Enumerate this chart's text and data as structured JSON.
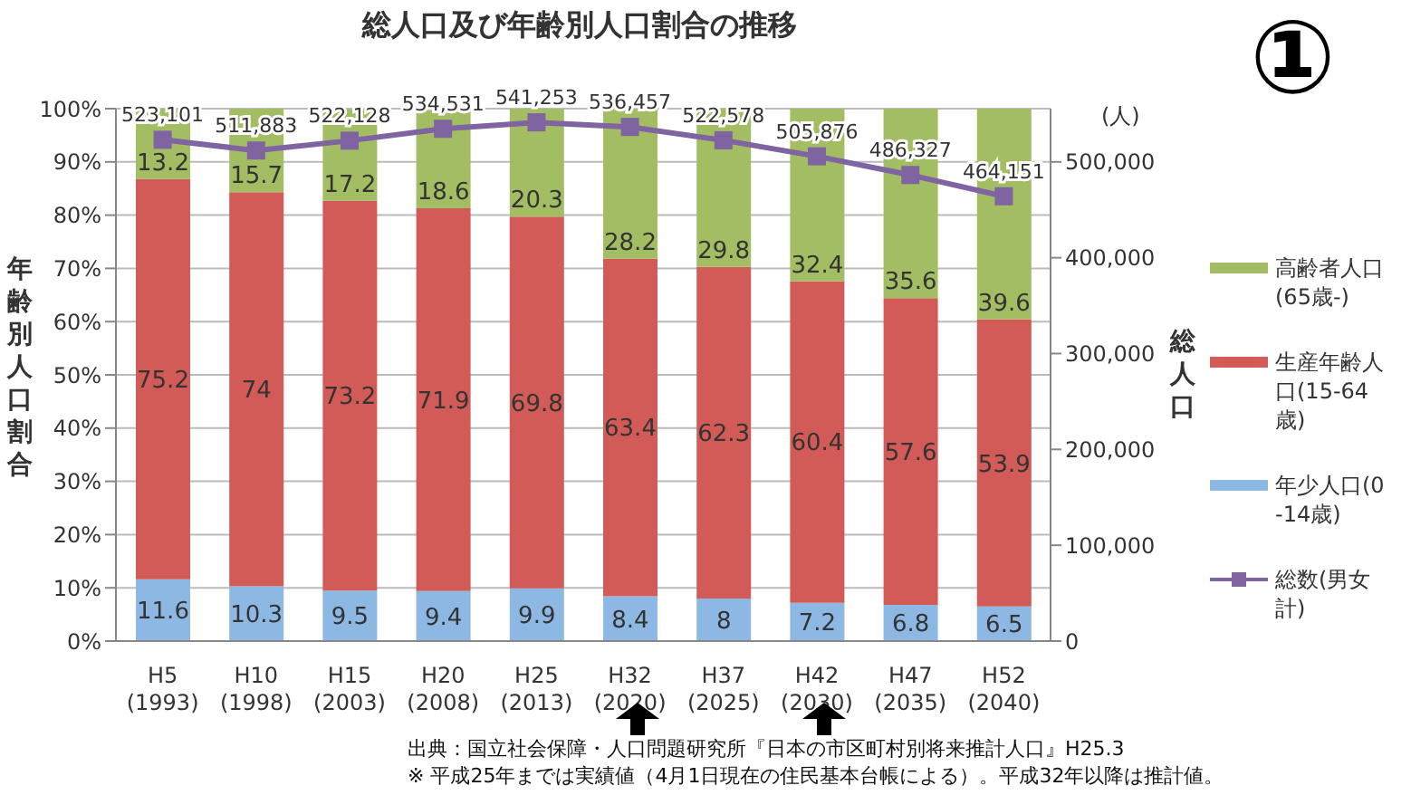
{
  "chart_data": {
    "type": "bar",
    "title": "総人口及び年齢別人口割合の推移",
    "ylabel": "年齢別人口割合",
    "y2label": "総人口",
    "categories": [
      "H5 (1993)",
      "H10 (1998)",
      "H15 (2003)",
      "H20 (2008)",
      "H25 (2013)",
      "H32 (2020)",
      "H37 (2025)",
      "H42 (2030)",
      "H47 (2035)",
      "H52 (2040)"
    ],
    "stacked": true,
    "data_labels": true,
    "legend": "right",
    "grid": "y",
    "series": [
      {
        "name": "年少人口(0-14歳)",
        "color": "#8db8e4",
        "values": [
          11.6,
          10.3,
          9.5,
          9.4,
          9.9,
          8.4,
          8.0,
          7.2,
          6.8,
          6.5
        ]
      },
      {
        "name": "生産年齢人口(15-64歳)",
        "color": "#d25a57",
        "values": [
          75.2,
          74.0,
          73.2,
          71.9,
          69.8,
          63.4,
          62.3,
          60.4,
          57.6,
          53.9
        ]
      },
      {
        "name": "高齢者人口(65歳-)",
        "color": "#a3bd63",
        "values": [
          13.2,
          15.7,
          17.2,
          18.6,
          20.3,
          28.2,
          29.8,
          32.4,
          35.6,
          39.6
        ]
      },
      {
        "name": "総数(男女計)",
        "type": "line",
        "axis": "y2",
        "color": "#8064a2",
        "marker": "square",
        "values": [
          523101,
          511883,
          522128,
          534531,
          541253,
          536457,
          522578,
          505876,
          486327,
          464151
        ],
        "value_labels": [
          "523,101",
          "511,883",
          "522,128",
          "534,531",
          "541,253",
          "536,457",
          "522,578",
          "505,876",
          "486,327",
          "464,151"
        ]
      }
    ],
    "ylim": [
      0,
      100
    ],
    "yticks": [
      {
        "value": 0,
        "label": "0%"
      },
      {
        "value": 10,
        "label": "10%"
      },
      {
        "value": 20,
        "label": "20%"
      },
      {
        "value": 30,
        "label": "30%"
      },
      {
        "value": 40,
        "label": "40%"
      },
      {
        "value": 50,
        "label": "50%"
      },
      {
        "value": 60,
        "label": "60%"
      },
      {
        "value": 70,
        "label": "70%"
      },
      {
        "value": 80,
        "label": "80%"
      },
      {
        "value": 90,
        "label": "90%"
      },
      {
        "value": 100,
        "label": "100%"
      }
    ],
    "y2lim": [
      0,
      555556
    ],
    "y2ticks": [
      {
        "value": 0,
        "label": "0"
      },
      {
        "value": 100000,
        "label": "100,000"
      },
      {
        "value": 200000,
        "label": "200,000"
      },
      {
        "value": 300000,
        "label": "300,000"
      },
      {
        "value": 400000,
        "label": "400,000"
      },
      {
        "value": 500000,
        "label": "500,000"
      }
    ],
    "annotations": [
      "①",
      "(人)",
      "出典：国立社会保障・人口問題研究所『日本の市区町村別将来推計人口』H25.3",
      "※ 平成25年までは実績値（4月1日現在の住民基本台帳による）。平成32年以降は推計値。"
    ]
  }
}
